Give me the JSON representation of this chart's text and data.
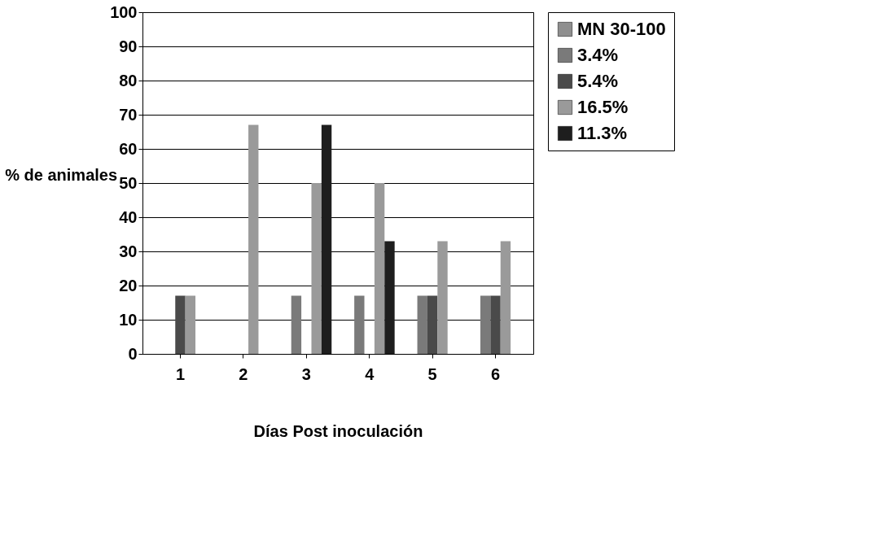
{
  "chart_data": {
    "type": "bar",
    "categories": [
      "1",
      "2",
      "3",
      "4",
      "5",
      "6"
    ],
    "series": [
      {
        "name": "MN 30-100",
        "color": "#8f8f8f",
        "values": [
          0,
          0,
          0,
          0,
          0,
          0
        ]
      },
      {
        "name": "3.4%",
        "color": "#7a7a7a",
        "values": [
          0,
          0,
          17,
          17,
          17,
          17
        ]
      },
      {
        "name": "5.4%",
        "color": "#4a4a4a",
        "values": [
          17,
          0,
          0,
          0,
          17,
          17
        ]
      },
      {
        "name": "16.5%",
        "color": "#9a9a9a",
        "values": [
          17,
          67,
          50,
          50,
          33,
          33
        ]
      },
      {
        "name": "11.3%",
        "color": "#1e1e1e",
        "values": [
          0,
          0,
          67,
          33,
          0,
          0
        ]
      }
    ],
    "xlabel": "Días Post inoculación",
    "ylabel": "% de animales",
    "ylim": [
      0,
      100
    ],
    "yticks": [
      0,
      10,
      20,
      30,
      40,
      50,
      60,
      70,
      80,
      90,
      100
    ],
    "grid": "y",
    "legend": "right"
  }
}
